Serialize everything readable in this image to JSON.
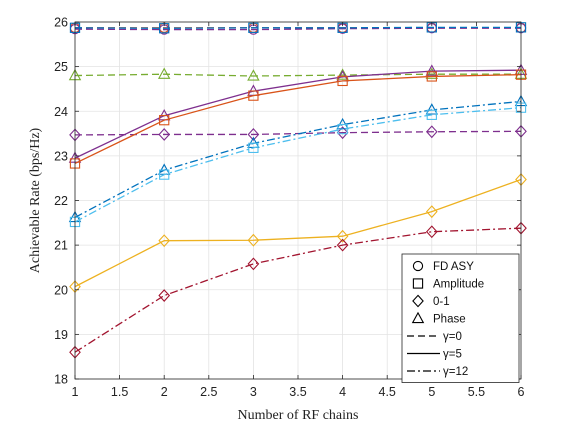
{
  "chart_data": {
    "type": "line",
    "title": "",
    "xlabel": "Number of RF chains",
    "ylabel": "Achievable Rate (bps/Hz)",
    "xlim": [
      1,
      6
    ],
    "ylim": [
      18,
      26
    ],
    "x_ticks": [
      1,
      1.5,
      2,
      2.5,
      3,
      3.5,
      4,
      4.5,
      5,
      5.5,
      6
    ],
    "x_tick_labels": [
      "1",
      "1.5",
      "2",
      "2.5",
      "3",
      "3.5",
      "4",
      "4.5",
      "5",
      "5.5",
      "6"
    ],
    "y_ticks": [
      18,
      19,
      20,
      21,
      22,
      23,
      24,
      25,
      26
    ],
    "y_tick_labels": [
      "18",
      "19",
      "20",
      "21",
      "22",
      "23",
      "24",
      "25",
      "26"
    ],
    "grid": true,
    "legend_position": "bottom-right",
    "x": [
      1,
      2,
      3,
      4,
      5,
      6
    ],
    "series": [
      {
        "color": "#D95319",
        "linestyle": "dashed",
        "marker": "circle",
        "values": [
          25.87,
          25.87,
          25.87,
          25.87,
          25.87,
          25.87
        ]
      },
      {
        "color": "#7E2F8E",
        "linestyle": "dashed",
        "marker": "circle",
        "values": [
          25.84,
          25.83,
          25.83,
          25.85,
          25.86,
          25.86
        ]
      },
      {
        "color": "#0072BD",
        "linestyle": "dashed",
        "marker": "square",
        "values": [
          25.87,
          25.86,
          25.87,
          25.87,
          25.88,
          25.88
        ]
      },
      {
        "color": "#77AC30",
        "linestyle": "dashed",
        "marker": "triangle",
        "values": [
          24.8,
          24.83,
          24.79,
          24.81,
          24.83,
          24.83
        ]
      },
      {
        "color": "#7E2F8E",
        "linestyle": "dashed",
        "marker": "diamond",
        "values": [
          23.47,
          23.48,
          23.48,
          23.52,
          23.54,
          23.55
        ]
      },
      {
        "color": "#7E2F8E",
        "linestyle": "solid",
        "marker": "triangle",
        "values": [
          22.95,
          23.9,
          24.45,
          24.77,
          24.9,
          24.92
        ]
      },
      {
        "color": "#D95319",
        "linestyle": "solid",
        "marker": "square",
        "values": [
          22.83,
          23.8,
          24.35,
          24.68,
          24.78,
          24.82
        ]
      },
      {
        "color": "#0072BD",
        "linestyle": "dashdot",
        "marker": "triangle",
        "values": [
          21.62,
          22.68,
          23.28,
          23.7,
          24.03,
          24.22
        ]
      },
      {
        "color": "#4DBEEE",
        "linestyle": "dashdot",
        "marker": "square",
        "values": [
          21.52,
          22.58,
          23.18,
          23.6,
          23.92,
          24.08
        ]
      },
      {
        "color": "#EDB120",
        "linestyle": "solid",
        "marker": "diamond",
        "values": [
          20.07,
          21.1,
          21.11,
          21.2,
          21.75,
          22.47
        ]
      },
      {
        "color": "#A2142F",
        "linestyle": "dashdot",
        "marker": "diamond",
        "values": [
          18.6,
          19.87,
          20.58,
          21.0,
          21.3,
          21.38
        ]
      }
    ],
    "legend": [
      {
        "kind": "marker",
        "marker": "circle",
        "label": "FD ASY"
      },
      {
        "kind": "marker",
        "marker": "square",
        "label": "Amplitude"
      },
      {
        "kind": "marker",
        "marker": "diamond",
        "label": "0-1"
      },
      {
        "kind": "marker",
        "marker": "triangle",
        "label": "Phase"
      },
      {
        "kind": "line",
        "linestyle": "dashed",
        "label": "γ=0"
      },
      {
        "kind": "line",
        "linestyle": "solid",
        "label": "γ=5"
      },
      {
        "kind": "line",
        "linestyle": "dashdot",
        "label": "γ=12"
      }
    ]
  }
}
